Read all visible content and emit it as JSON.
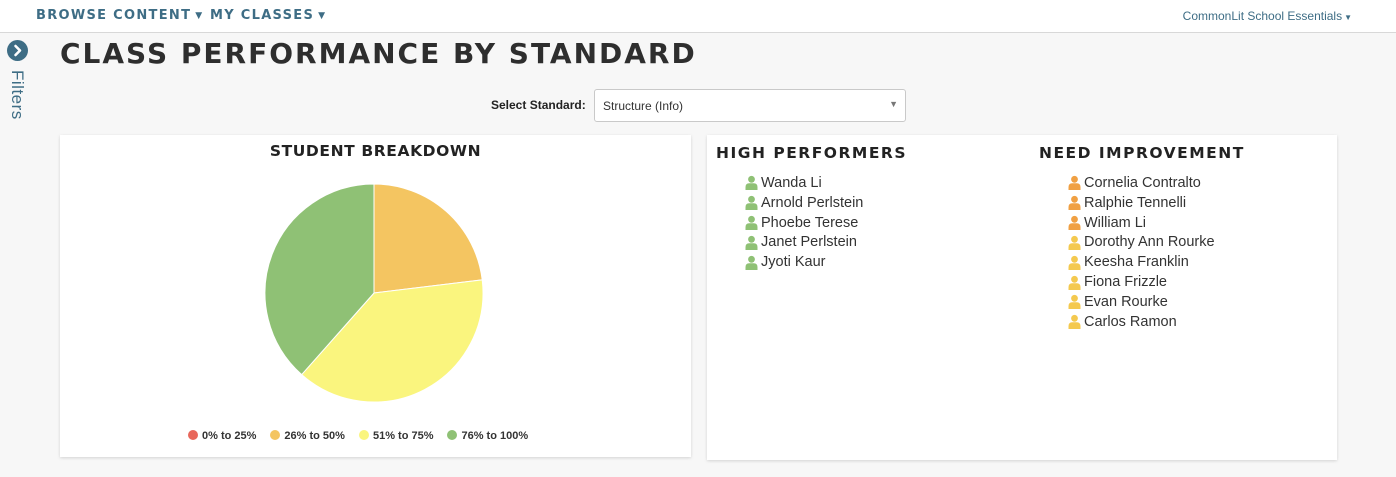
{
  "nav": {
    "browse_content": "BROWSE CONTENT",
    "my_classes": "MY CLASSES",
    "account": "CommonLit School Essentials"
  },
  "sidebar": {
    "filters_label": "Filters"
  },
  "page": {
    "title": "CLASS PERFORMANCE BY STANDARD"
  },
  "standard": {
    "label": "Select Standard:",
    "selected": "Structure (Info)"
  },
  "breakdown": {
    "title": "STUDENT BREAKDOWN",
    "chart_data": {
      "type": "pie",
      "title": "STUDENT BREAKDOWN",
      "categories": [
        "0% to 25%",
        "26% to 50%",
        "51% to 75%",
        "76% to 100%"
      ],
      "values": [
        0,
        3,
        5,
        5
      ],
      "colors": [
        "#e8675b",
        "#f4c561",
        "#faf57e",
        "#8fc175"
      ],
      "legend_position": "bottom"
    }
  },
  "high_performers": {
    "title": "HIGH PERFORMERS",
    "icon": "user-icon",
    "students": [
      {
        "name": "Wanda Li",
        "color": "#8fc175"
      },
      {
        "name": "Arnold Perlstein",
        "color": "#8fc175"
      },
      {
        "name": "Phoebe Terese",
        "color": "#8fc175"
      },
      {
        "name": "Janet Perlstein",
        "color": "#8fc175"
      },
      {
        "name": "Jyoti Kaur",
        "color": "#8fc175"
      }
    ]
  },
  "need_improvement": {
    "title": "NEED IMPROVEMENT",
    "icon": "user-icon",
    "students": [
      {
        "name": "Cornelia Contralto",
        "color": "#f0a043"
      },
      {
        "name": "Ralphie Tennelli",
        "color": "#f0a043"
      },
      {
        "name": "William Li",
        "color": "#f0a043"
      },
      {
        "name": "Dorothy Ann Rourke",
        "color": "#f4c94f"
      },
      {
        "name": "Keesha Franklin",
        "color": "#f4c94f"
      },
      {
        "name": "Fiona Frizzle",
        "color": "#f4c94f"
      },
      {
        "name": "Evan Rourke",
        "color": "#f4c94f"
      },
      {
        "name": "Carlos Ramon",
        "color": "#f4c94f"
      }
    ]
  }
}
